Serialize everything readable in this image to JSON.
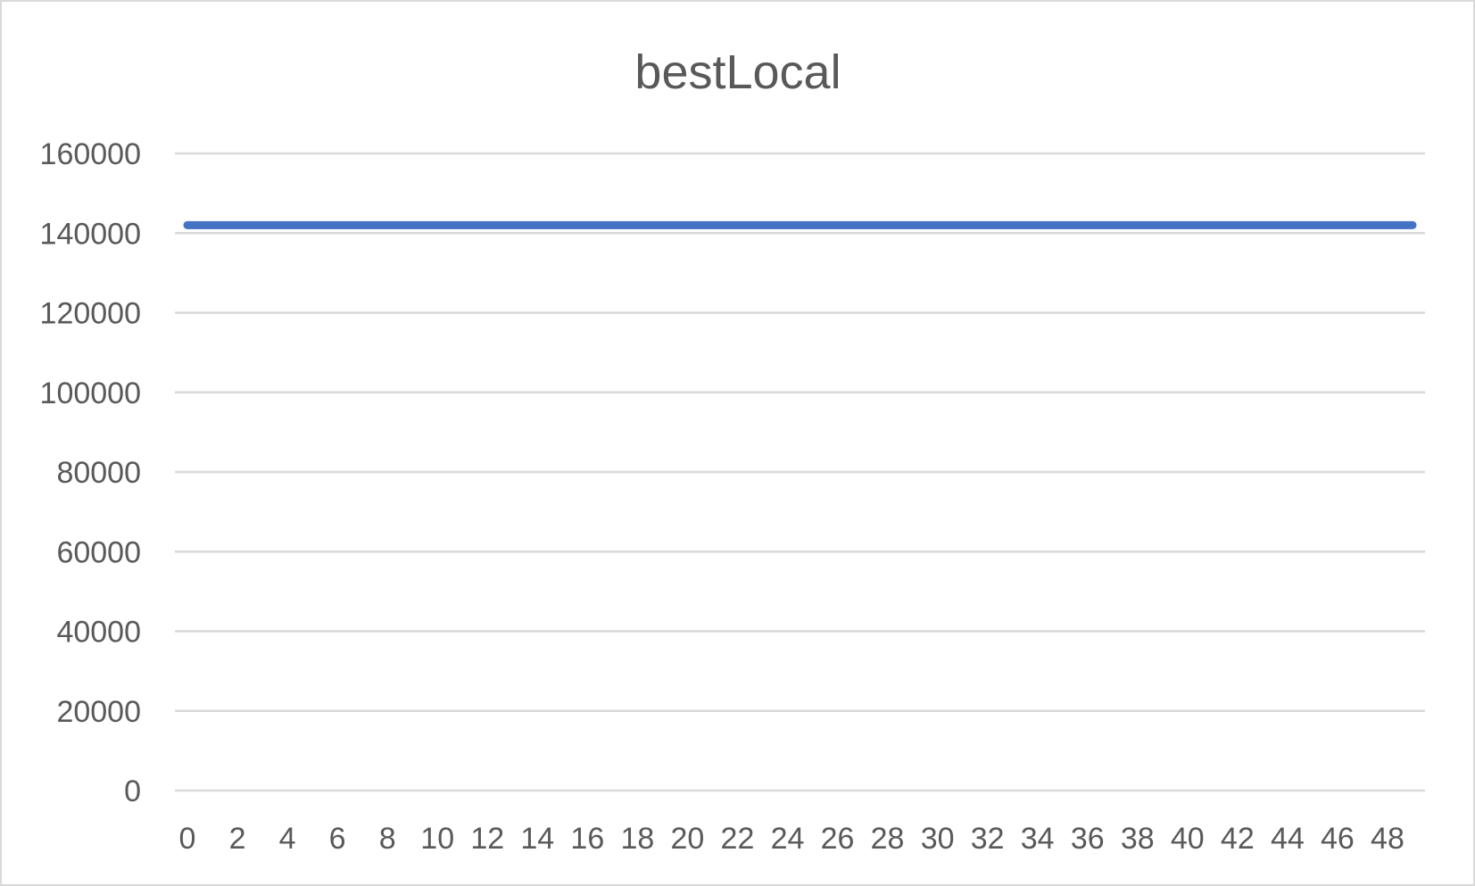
{
  "chart_data": {
    "type": "line",
    "title": "bestLocal",
    "xlabel": "",
    "ylabel": "",
    "x": [
      0,
      1,
      2,
      3,
      4,
      5,
      6,
      7,
      8,
      9,
      10,
      11,
      12,
      13,
      14,
      15,
      16,
      17,
      18,
      19,
      20,
      21,
      22,
      23,
      24,
      25,
      26,
      27,
      28,
      29,
      30,
      31,
      32,
      33,
      34,
      35,
      36,
      37,
      38,
      39,
      40,
      41,
      42,
      43,
      44,
      45,
      46,
      47,
      48,
      49
    ],
    "x_tick_labels": [
      "0",
      "2",
      "4",
      "6",
      "8",
      "10",
      "12",
      "14",
      "16",
      "18",
      "20",
      "22",
      "24",
      "26",
      "28",
      "30",
      "32",
      "34",
      "36",
      "38",
      "40",
      "42",
      "44",
      "46",
      "48"
    ],
    "y_tick_labels": [
      "160000",
      "140000",
      "120000",
      "100000",
      "80000",
      "60000",
      "40000",
      "20000",
      "0"
    ],
    "ylim": [
      0,
      160000
    ],
    "grid": true,
    "legend": "none",
    "series": [
      {
        "color": "#4472c4",
        "values": [
          142000,
          142000,
          142000,
          142000,
          142000,
          142000,
          142000,
          142000,
          142000,
          142000,
          142000,
          142000,
          142000,
          142000,
          142000,
          142000,
          142000,
          142000,
          142000,
          142000,
          142000,
          142000,
          142000,
          142000,
          142000,
          142000,
          142000,
          142000,
          142000,
          142000,
          142000,
          142000,
          142000,
          142000,
          142000,
          142000,
          142000,
          142000,
          142000,
          142000,
          142000,
          142000,
          142000,
          142000,
          142000,
          142000,
          142000,
          142000,
          142000,
          142000
        ]
      }
    ]
  }
}
